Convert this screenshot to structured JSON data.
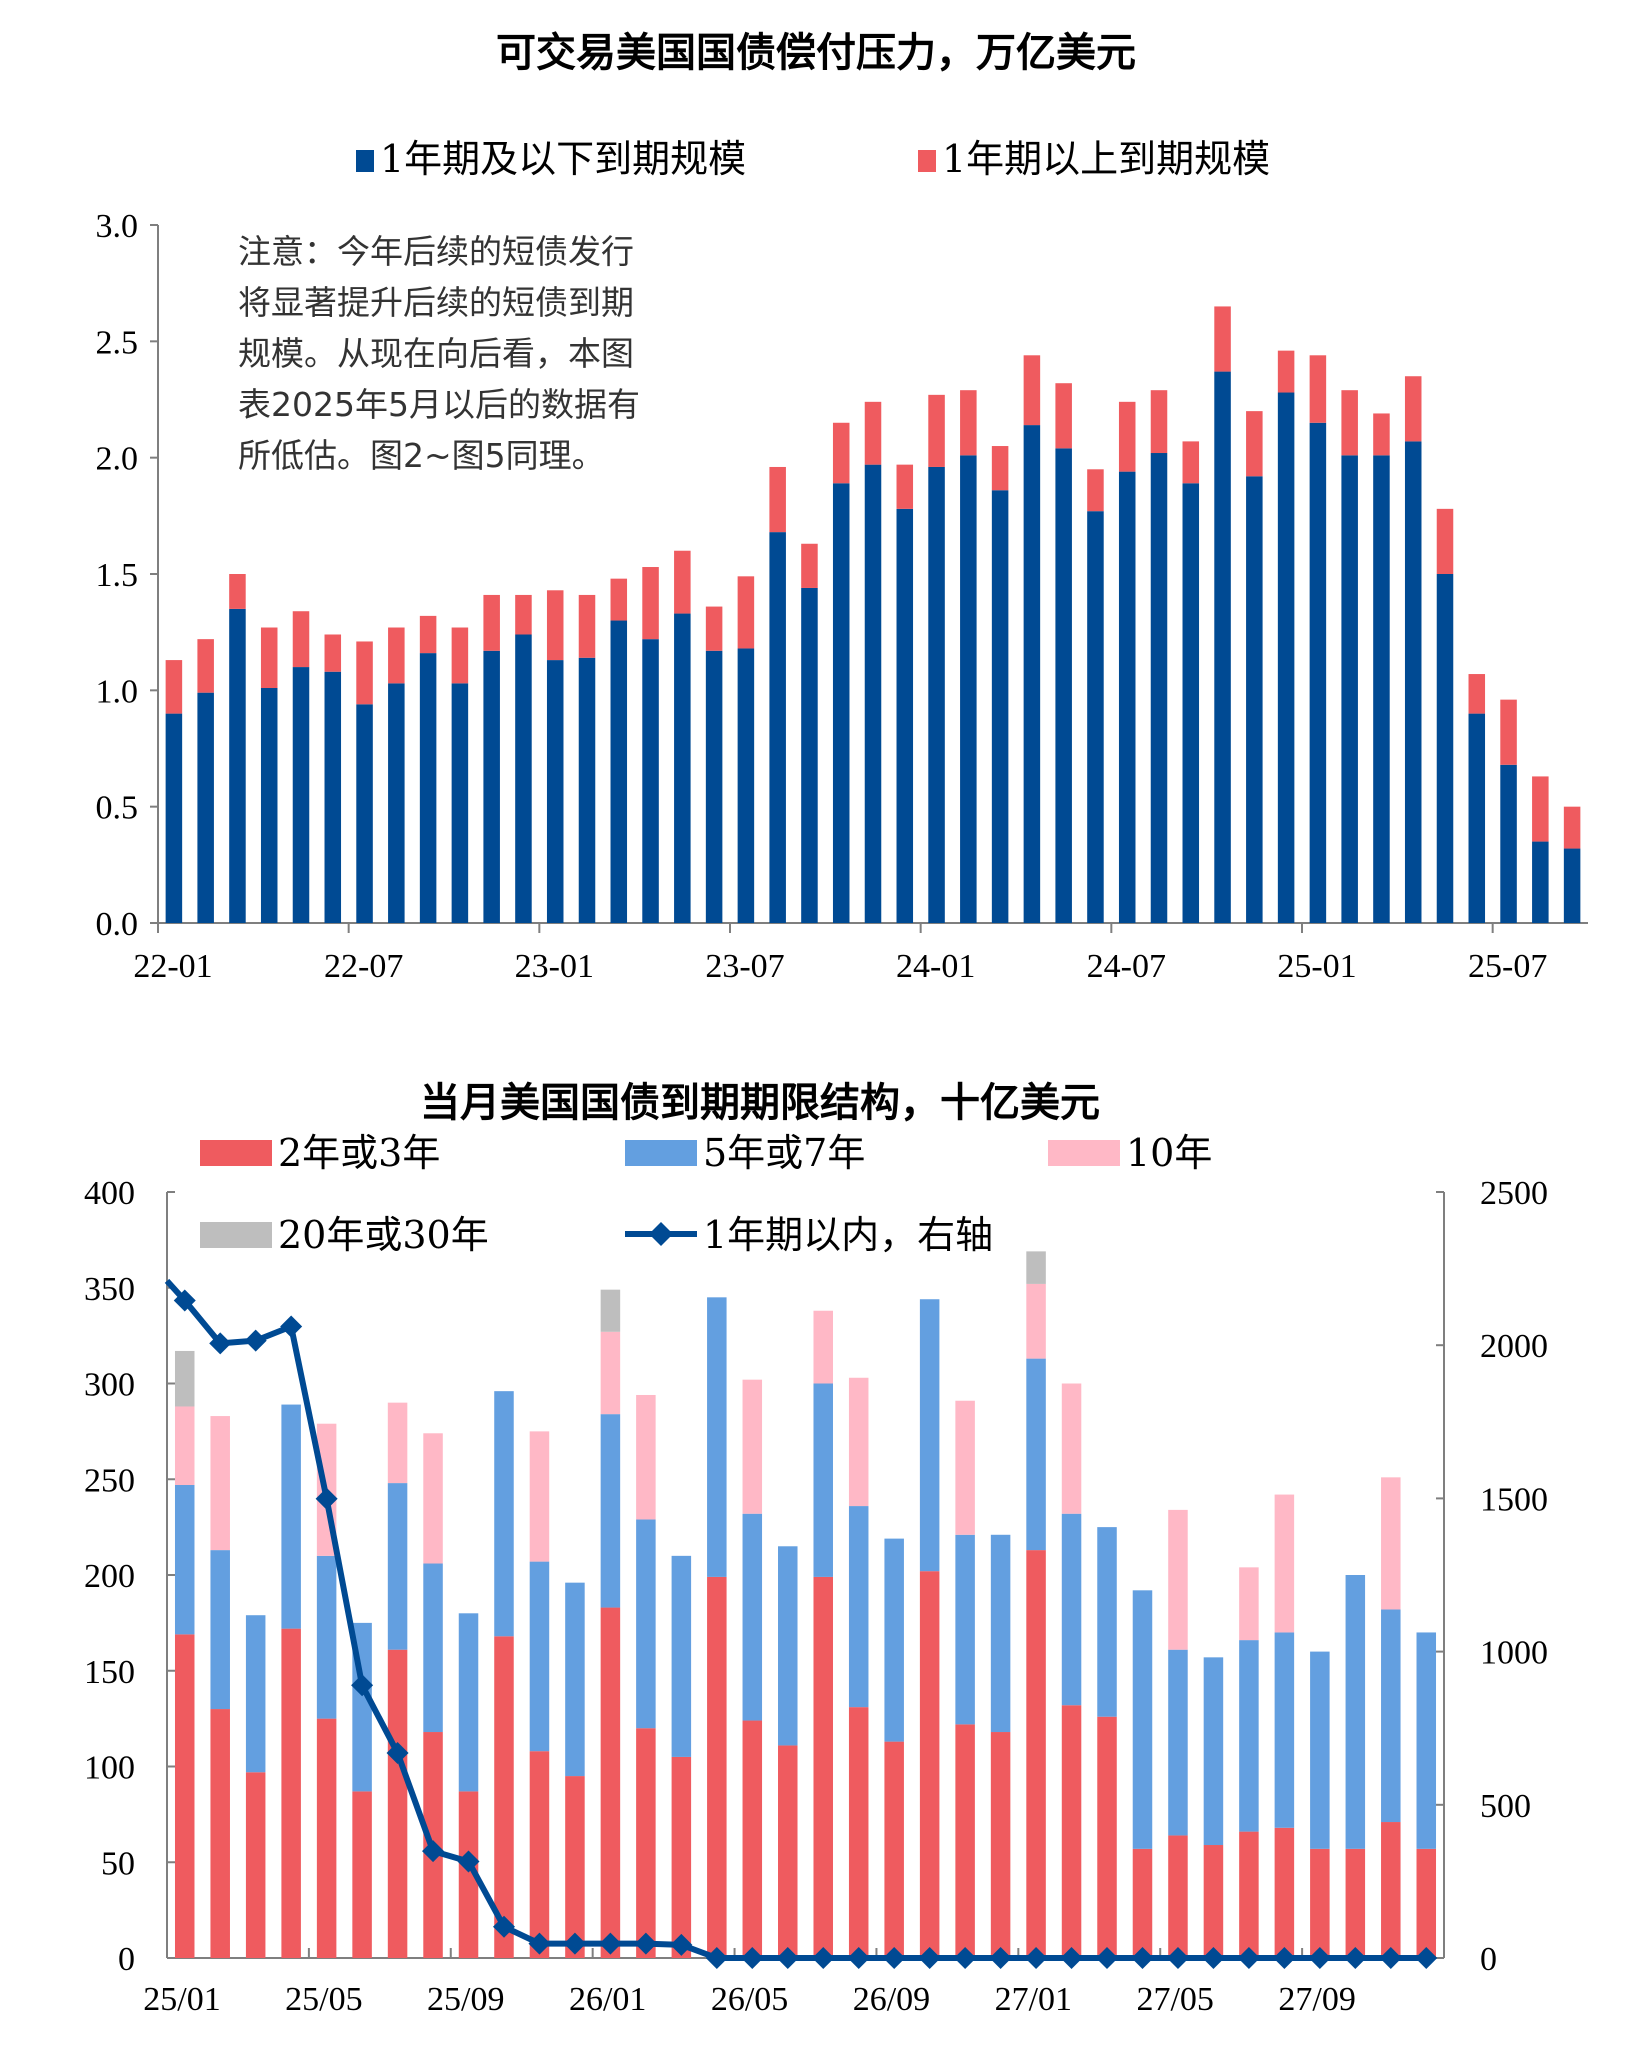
{
  "colors": {
    "short": "#004A93",
    "long": "#EF5B5F",
    "red_2y3y": "#EF5B5F",
    "blue_5y7y": "#639FE0",
    "pink_10y": "#FFB8C6",
    "gray_20y30y": "#BEBEBE",
    "line_1y": "#004A93",
    "axis": "#7f7f7f"
  },
  "note_lines": [
    "注意：今年后续的短债发行",
    "将显著提升后续的短债到期",
    "规模。从现在向后看，本图",
    "表2025年5月以后的数据有",
    "所低估。图2~图5同理。"
  ],
  "chart_data": [
    {
      "type": "bar",
      "stacked": true,
      "title": "可交易美国国债偿付压力，万亿美元",
      "xlabel": "",
      "ylabel": "",
      "ylim": [
        0,
        3.0
      ],
      "yticks": [
        "0.0",
        "0.5",
        "1.0",
        "1.5",
        "2.0",
        "2.5",
        "3.0"
      ],
      "ytick_values": [
        0,
        0.5,
        1.0,
        1.5,
        2.0,
        2.5,
        3.0
      ],
      "xtick_labels": [
        "22-01",
        "22-07",
        "23-01",
        "23-07",
        "24-01",
        "24-07",
        "25-01",
        "25-07"
      ],
      "xtick_indices": [
        0,
        6,
        12,
        18,
        24,
        30,
        36,
        42
      ],
      "legend_position": "top",
      "categories": [
        "22-01",
        "22-02",
        "22-03",
        "22-04",
        "22-05",
        "22-06",
        "22-07",
        "22-08",
        "22-09",
        "22-10",
        "22-11",
        "22-12",
        "23-01",
        "23-02",
        "23-03",
        "23-04",
        "23-05",
        "23-06",
        "23-07",
        "23-08",
        "23-09",
        "23-10",
        "23-11",
        "23-12",
        "24-01",
        "24-02",
        "24-03",
        "24-04",
        "24-05",
        "24-06",
        "24-07",
        "24-08",
        "24-09",
        "24-10",
        "24-11",
        "24-12",
        "25-01",
        "25-02",
        "25-03",
        "25-04",
        "25-05",
        "25-06",
        "25-07",
        "25-08",
        "25-09"
      ],
      "series": [
        {
          "name": "1年期及以下到期规模",
          "color_key": "short",
          "values": [
            0.9,
            0.99,
            1.35,
            1.01,
            1.1,
            1.08,
            0.94,
            1.03,
            1.16,
            1.03,
            1.17,
            1.24,
            1.13,
            1.14,
            1.3,
            1.22,
            1.33,
            1.17,
            1.18,
            1.68,
            1.44,
            1.89,
            1.97,
            1.78,
            1.96,
            2.01,
            1.86,
            2.14,
            2.04,
            1.77,
            1.94,
            2.02,
            1.89,
            2.37,
            1.92,
            2.28,
            2.15,
            2.01,
            2.01,
            2.07,
            1.5,
            0.9,
            0.68,
            0.35,
            0.32
          ]
        },
        {
          "name": "1年期以上到期规模",
          "color_key": "long",
          "values": [
            0.23,
            0.23,
            0.15,
            0.26,
            0.24,
            0.16,
            0.27,
            0.24,
            0.16,
            0.24,
            0.24,
            0.17,
            0.3,
            0.27,
            0.18,
            0.31,
            0.27,
            0.19,
            0.31,
            0.28,
            0.19,
            0.26,
            0.27,
            0.19,
            0.31,
            0.28,
            0.19,
            0.3,
            0.28,
            0.18,
            0.3,
            0.27,
            0.18,
            0.28,
            0.28,
            0.18,
            0.29,
            0.28,
            0.18,
            0.28,
            0.28,
            0.17,
            0.28,
            0.28,
            0.18
          ]
        }
      ]
    },
    {
      "type": "bar",
      "stacked": true,
      "title": "当月美国国债到期期限结构，十亿美元",
      "xlabel": "",
      "ylabel": "",
      "ylim": [
        0,
        400
      ],
      "y2lim": [
        0,
        2500
      ],
      "yticks": [
        "0",
        "50",
        "100",
        "150",
        "200",
        "250",
        "300",
        "350",
        "400"
      ],
      "ytick_values": [
        0,
        50,
        100,
        150,
        200,
        250,
        300,
        350,
        400
      ],
      "y2ticks": [
        "0",
        "500",
        "1000",
        "1500",
        "2000",
        "2500"
      ],
      "y2tick_values": [
        0,
        500,
        1000,
        1500,
        2000,
        2500
      ],
      "xtick_labels": [
        "25/01",
        "25/05",
        "25/09",
        "26/01",
        "26/05",
        "26/09",
        "27/01",
        "27/05",
        "27/09"
      ],
      "xtick_indices": [
        0,
        4,
        8,
        12,
        16,
        20,
        24,
        28,
        32
      ],
      "legend_position": "top-left",
      "categories": [
        "25/01",
        "25/02",
        "25/03",
        "25/04",
        "25/05",
        "25/06",
        "25/07",
        "25/08",
        "25/09",
        "25/10",
        "25/11",
        "25/12",
        "26/01",
        "26/02",
        "26/03",
        "26/04",
        "26/05",
        "26/06",
        "26/07",
        "26/08",
        "26/09",
        "26/10",
        "26/11",
        "26/12",
        "27/01",
        "27/02",
        "27/03",
        "27/04",
        "27/05",
        "27/06",
        "27/07",
        "27/08",
        "27/09",
        "27/10",
        "27/11",
        "27/12"
      ],
      "series": [
        {
          "name": "2年或3年",
          "color_key": "red_2y3y",
          "values": [
            169,
            130,
            97,
            172,
            125,
            87,
            161,
            118,
            87,
            168,
            108,
            95,
            183,
            120,
            105,
            199,
            124,
            111,
            199,
            131,
            113,
            202,
            122,
            118,
            213,
            132,
            126,
            57,
            64,
            59,
            66,
            68,
            57,
            57,
            71,
            57
          ]
        },
        {
          "name": "5年或7年",
          "color_key": "blue_5y7y",
          "values": [
            78,
            83,
            82,
            117,
            85,
            88,
            87,
            88,
            93,
            128,
            99,
            101,
            101,
            109,
            105,
            146,
            108,
            104,
            101,
            105,
            106,
            142,
            99,
            103,
            100,
            100,
            99,
            135,
            97,
            98,
            100,
            102,
            103,
            143,
            111,
            113
          ]
        },
        {
          "name": "10年",
          "color_key": "pink_10y",
          "values": [
            41,
            70,
            0,
            0,
            69,
            0,
            42,
            68,
            0,
            0,
            68,
            0,
            43,
            65,
            0,
            0,
            70,
            0,
            38,
            67,
            0,
            0,
            70,
            0,
            39,
            68,
            0,
            0,
            73,
            0,
            38,
            72,
            0,
            0,
            69,
            0
          ]
        },
        {
          "name": "20年或30年",
          "color_key": "gray_20y30y",
          "values": [
            29,
            0,
            0,
            0,
            0,
            0,
            0,
            0,
            0,
            0,
            0,
            0,
            22,
            0,
            0,
            0,
            0,
            0,
            0,
            0,
            0,
            0,
            0,
            0,
            17,
            0,
            0,
            0,
            0,
            0,
            0,
            0,
            0,
            0,
            0,
            0
          ]
        },
        {
          "name": "1年期以内，右轴",
          "type": "line",
          "axis": "right",
          "color_key": "line_1y",
          "lead_in_value": 2210,
          "values": [
            2146,
            2006,
            2015,
            2061,
            1499,
            890,
            669,
            349,
            315,
            102,
            47,
            47,
            47,
            47,
            43,
            0,
            0,
            0,
            0,
            0,
            0,
            0,
            0,
            0,
            0,
            0,
            0,
            0,
            0,
            0,
            0,
            0,
            0,
            0,
            0,
            0
          ]
        }
      ]
    }
  ]
}
